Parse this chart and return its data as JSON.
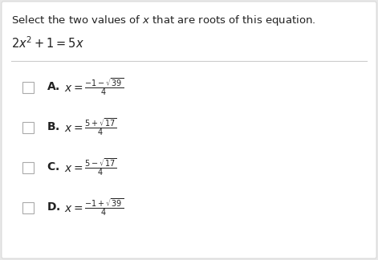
{
  "title": "Select the two values of $x$ that are roots of this equation.",
  "equation": "$2x^2 + 1 = 5x$",
  "options": [
    {
      "label": "A."
    },
    {
      "label": "B."
    },
    {
      "label": "C."
    },
    {
      "label": "D."
    }
  ],
  "option_texts": [
    "$x = \\frac{-1 - \\sqrt{39}}{4}$",
    "$x = \\frac{5 + \\sqrt{17}}{4}$",
    "$x = \\frac{5 - \\sqrt{17}}{4}$",
    "$x = \\frac{-1 + \\sqrt{39}}{4}$"
  ],
  "bg_color": "#e8e8e8",
  "box_color": "#ffffff",
  "text_color": "#222222",
  "checkbox_color": "#ffffff",
  "checkbox_edge": "#aaaaaa",
  "separator_color": "#cccccc",
  "title_fontsize": 9.5,
  "equation_fontsize": 10.5,
  "option_label_fontsize": 10,
  "option_formula_fontsize": 10
}
